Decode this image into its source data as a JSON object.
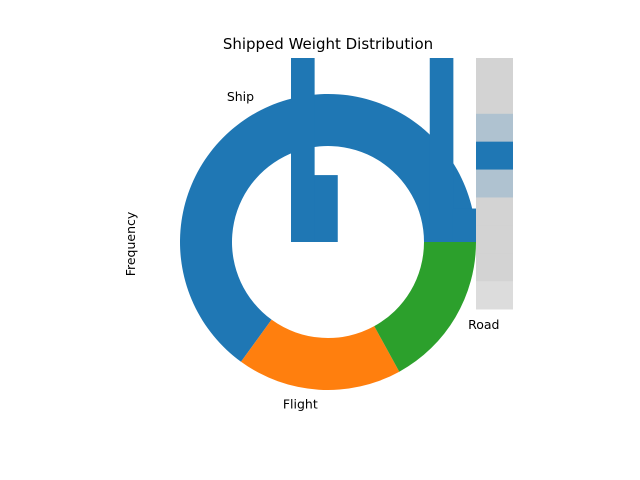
{
  "chart_data": {
    "type": "pie",
    "title": "Shipped Weight Distribution",
    "ylabel": "Frequency",
    "donut": true,
    "slices": [
      {
        "label": "Ship",
        "value": 65,
        "color": "#1f77b4"
      },
      {
        "label": "Flight",
        "value": 18,
        "color": "#ff7f0e"
      },
      {
        "label": "Road",
        "value": 17,
        "color": "#2ca02c"
      }
    ],
    "overlay_bars": {
      "type": "bar",
      "color": "#1f77b4",
      "values": [
        11,
        4,
        0,
        0,
        0,
        0,
        11,
        2
      ],
      "ylim": [
        0,
        11
      ]
    },
    "overlay_heatmap": {
      "type": "heatmap",
      "colors": [
        "#d3d3d3",
        "#d3d3d3",
        "#afc2d0",
        "#1f77b4",
        "#afc2d0",
        "#d3d3d3",
        "#d3d3d3",
        "#d3d3d3",
        "#dcdcdc"
      ]
    }
  }
}
